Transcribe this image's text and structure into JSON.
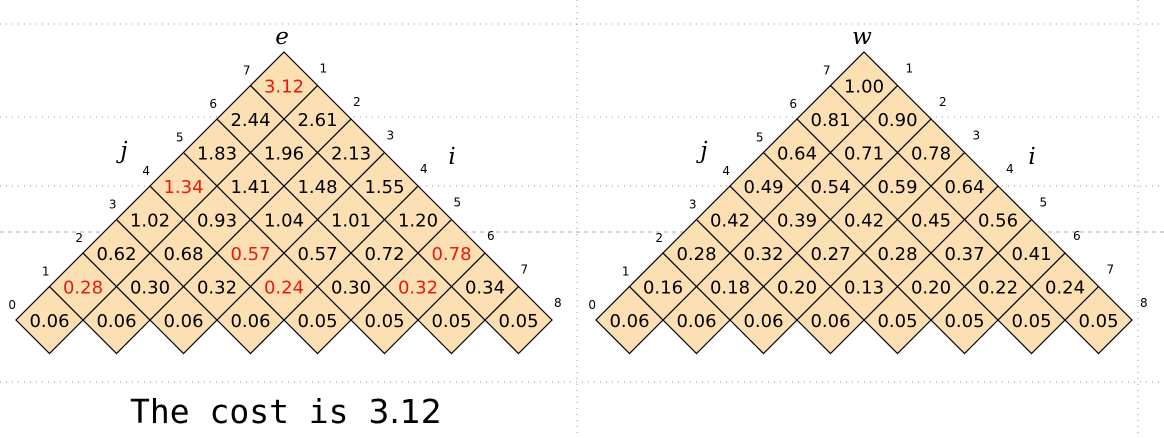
{
  "colors": {
    "cell_fill": "#FCE0B4",
    "highlight": "#E8190F",
    "text": "#000000"
  },
  "caption": {
    "prefix": "The cost is ",
    "value": "3.12"
  },
  "triangles": [
    {
      "id": "e",
      "symbol": "e",
      "left_label": "j",
      "right_label": "i",
      "left_indices": [
        "0",
        "1",
        "2",
        "3",
        "4",
        "5",
        "6",
        "7"
      ],
      "right_indices": [
        "1",
        "2",
        "3",
        "4",
        "5",
        "6",
        "7",
        "8"
      ],
      "rows": [
        [
          "0.06",
          "0.06",
          "0.06",
          "0.06",
          "0.05",
          "0.05",
          "0.05",
          "0.05"
        ],
        [
          "0.28",
          "0.30",
          "0.32",
          "0.24",
          "0.30",
          "0.32",
          "0.34"
        ],
        [
          "0.62",
          "0.68",
          "0.57",
          "0.57",
          "0.72",
          "0.78"
        ],
        [
          "1.02",
          "0.93",
          "1.04",
          "1.01",
          "1.20"
        ],
        [
          "1.34",
          "1.41",
          "1.48",
          "1.55"
        ],
        [
          "1.83",
          "1.96",
          "2.13"
        ],
        [
          "2.44",
          "2.61"
        ],
        [
          "3.12"
        ]
      ],
      "highlights": [
        [
          1,
          0
        ],
        [
          1,
          3
        ],
        [
          1,
          5
        ],
        [
          2,
          2
        ],
        [
          2,
          5
        ],
        [
          4,
          0
        ],
        [
          7,
          0
        ]
      ]
    },
    {
      "id": "w",
      "symbol": "w",
      "left_label": "j",
      "right_label": "i",
      "left_indices": [
        "0",
        "1",
        "2",
        "3",
        "4",
        "5",
        "6",
        "7"
      ],
      "right_indices": [
        "1",
        "2",
        "3",
        "4",
        "5",
        "6",
        "7",
        "8"
      ],
      "rows": [
        [
          "0.06",
          "0.06",
          "0.06",
          "0.06",
          "0.05",
          "0.05",
          "0.05",
          "0.05"
        ],
        [
          "0.16",
          "0.18",
          "0.20",
          "0.13",
          "0.20",
          "0.22",
          "0.24"
        ],
        [
          "0.28",
          "0.32",
          "0.27",
          "0.28",
          "0.37",
          "0.41"
        ],
        [
          "0.42",
          "0.39",
          "0.42",
          "0.45",
          "0.56"
        ],
        [
          "0.49",
          "0.54",
          "0.59",
          "0.64"
        ],
        [
          "0.64",
          "0.71",
          "0.78"
        ],
        [
          "0.81",
          "0.90"
        ],
        [
          "1.00"
        ]
      ],
      "highlights": []
    }
  ]
}
